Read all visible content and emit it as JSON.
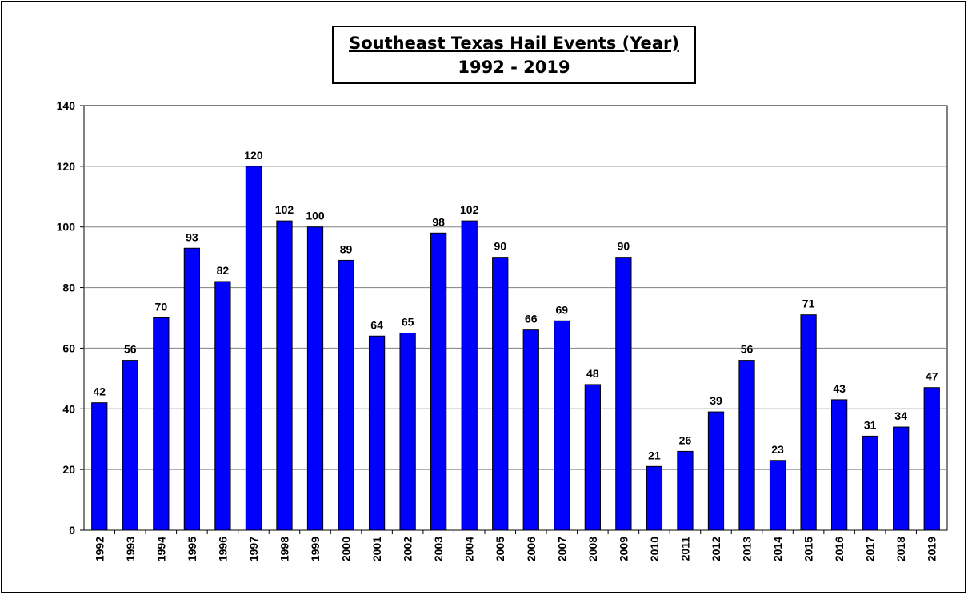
{
  "chart_data": {
    "type": "bar",
    "title": "Southeast Texas Hail Events (Year)",
    "subtitle": "1992 - 2019",
    "xlabel": "",
    "ylabel": "",
    "ylim": [
      0,
      140
    ],
    "yticks": [
      0,
      20,
      40,
      60,
      80,
      100,
      120,
      140
    ],
    "grid": true,
    "legend": "none",
    "bar_color": "#0000ff",
    "categories": [
      "1992",
      "1993",
      "1994",
      "1995",
      "1996",
      "1997",
      "1998",
      "1999",
      "2000",
      "2001",
      "2002",
      "2003",
      "2004",
      "2005",
      "2006",
      "2007",
      "2008",
      "2009",
      "2010",
      "2011",
      "2012",
      "2013",
      "2014",
      "2015",
      "2016",
      "2017",
      "2018",
      "2019"
    ],
    "values": [
      42,
      56,
      70,
      93,
      82,
      120,
      102,
      100,
      89,
      64,
      65,
      98,
      102,
      90,
      66,
      69,
      48,
      90,
      21,
      26,
      39,
      56,
      23,
      71,
      43,
      31,
      34,
      47
    ]
  }
}
